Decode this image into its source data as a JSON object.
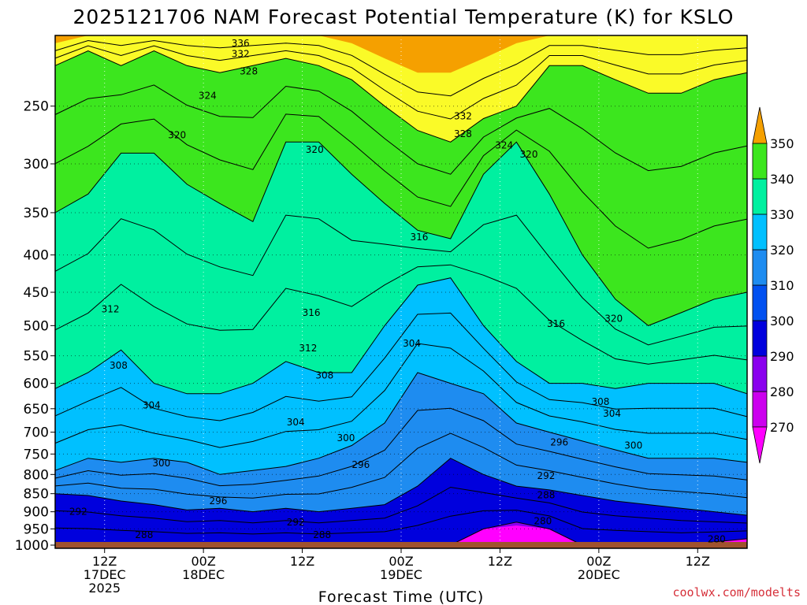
{
  "chart_data": {
    "type": "heatmap",
    "title": "2025121706 NAM Forecast Potential Temperature (K) for KSLO",
    "xlabel": "Forecast Time (UTC)",
    "ylabel": "",
    "x_ticks": [
      {
        "hours": 6,
        "lines": [
          "12Z",
          "17DEC",
          "2025"
        ]
      },
      {
        "hours": 18,
        "lines": [
          "00Z",
          "18DEC"
        ]
      },
      {
        "hours": 30,
        "lines": [
          "12Z"
        ]
      },
      {
        "hours": 42,
        "lines": [
          "00Z",
          "19DEC"
        ]
      },
      {
        "hours": 54,
        "lines": [
          "12Z"
        ]
      },
      {
        "hours": 66,
        "lines": [
          "00Z",
          "20DEC"
        ]
      },
      {
        "hours": 78,
        "lines": [
          "12Z"
        ]
      }
    ],
    "xlim_hours": [
      0,
      84
    ],
    "y_ticks": [
      250,
      300,
      350,
      400,
      450,
      500,
      550,
      600,
      650,
      700,
      750,
      800,
      850,
      900,
      950,
      1000
    ],
    "ylim_hpa": [
      1010,
      200
    ],
    "y_scale": "log",
    "grid": true,
    "surface_pressure_hpa": 990,
    "colorbar": {
      "levels": [
        270,
        280,
        290,
        300,
        310,
        320,
        330,
        340,
        350
      ],
      "colors": [
        "#ff00ff",
        "#cc00ee",
        "#8a00ee",
        "#0000dd",
        "#0050f0",
        "#1e8cf0",
        "#00c0ff",
        "#00f0a0",
        "#3ce61e",
        "#fafa28",
        "#f5a000"
      ],
      "extend": "both"
    },
    "x_hours": [
      0,
      4,
      8,
      12,
      16,
      20,
      24,
      28,
      32,
      36,
      40,
      44,
      48,
      52,
      56,
      60,
      64,
      68,
      72,
      76,
      80,
      84
    ],
    "series": [
      {
        "name": "280",
        "values": [
          1000,
          1000,
          1000,
          1000,
          1000,
          1000,
          1000,
          1000,
          1000,
          1000,
          1000,
          1000,
          1000,
          950,
          930,
          950,
          1000,
          1000,
          1000,
          1000,
          990,
          980
        ]
      },
      {
        "name": "290",
        "values": [
          850,
          855,
          870,
          880,
          895,
          890,
          900,
          890,
          900,
          890,
          880,
          830,
          760,
          800,
          830,
          840,
          855,
          870,
          880,
          890,
          900,
          910
        ]
      },
      {
        "name": "300",
        "values": [
          790,
          760,
          770,
          760,
          770,
          800,
          790,
          780,
          760,
          730,
          680,
          580,
          600,
          620,
          680,
          700,
          720,
          740,
          760,
          760,
          760,
          770
        ]
      },
      {
        "name": "310",
        "values": [
          610,
          580,
          540,
          600,
          620,
          620,
          600,
          560,
          580,
          580,
          500,
          440,
          430,
          500,
          560,
          600,
          600,
          610,
          600,
          600,
          600,
          620
        ]
      },
      {
        "name": "320",
        "values": [
          350,
          330,
          290,
          290,
          320,
          340,
          360,
          280,
          280,
          310,
          340,
          370,
          380,
          310,
          280,
          330,
          400,
          460,
          500,
          480,
          460,
          450
        ]
      },
      {
        "name": "330",
        "values": [
          220,
          210,
          220,
          210,
          220,
          225,
          220,
          215,
          220,
          230,
          250,
          270,
          280,
          260,
          250,
          220,
          220,
          230,
          240,
          240,
          230,
          225
        ]
      },
      {
        "name": "340",
        "values": [
          205,
          200,
          200,
          200,
          200,
          200,
          200,
          200,
          200,
          205,
          215,
          225,
          225,
          215,
          205,
          200,
          200,
          200,
          200,
          200,
          200,
          200
        ]
      }
    ],
    "contour_labels": [
      {
        "text": "336",
        "hours": 22.5,
        "hpa": 205
      },
      {
        "text": "332",
        "hours": 22.5,
        "hpa": 212
      },
      {
        "text": "328",
        "hours": 23.5,
        "hpa": 224
      },
      {
        "text": "324",
        "hours": 18.5,
        "hpa": 242
      },
      {
        "text": "332",
        "hours": 49.5,
        "hpa": 258
      },
      {
        "text": "328",
        "hours": 49.5,
        "hpa": 273
      },
      {
        "text": "324",
        "hours": 54.5,
        "hpa": 283
      },
      {
        "text": "320",
        "hours": 57.5,
        "hpa": 291
      },
      {
        "text": "320",
        "hours": 14.8,
        "hpa": 274
      },
      {
        "text": "320",
        "hours": 31.5,
        "hpa": 287
      },
      {
        "text": "316",
        "hours": 44.2,
        "hpa": 378
      },
      {
        "text": "316",
        "hours": 31.1,
        "hpa": 480
      },
      {
        "text": "316",
        "hours": 60.8,
        "hpa": 497
      },
      {
        "text": "320",
        "hours": 67.8,
        "hpa": 489
      },
      {
        "text": "312",
        "hours": 6.7,
        "hpa": 475
      },
      {
        "text": "312",
        "hours": 30.7,
        "hpa": 537
      },
      {
        "text": "304",
        "hours": 43.3,
        "hpa": 529
      },
      {
        "text": "308",
        "hours": 7.7,
        "hpa": 567
      },
      {
        "text": "308",
        "hours": 32.7,
        "hpa": 585
      },
      {
        "text": "304",
        "hours": 11.7,
        "hpa": 643
      },
      {
        "text": "304",
        "hours": 29.2,
        "hpa": 678
      },
      {
        "text": "308",
        "hours": 66.2,
        "hpa": 636
      },
      {
        "text": "304",
        "hours": 67.6,
        "hpa": 660
      },
      {
        "text": "300",
        "hours": 35.3,
        "hpa": 713
      },
      {
        "text": "296",
        "hours": 37.1,
        "hpa": 776
      },
      {
        "text": "296",
        "hours": 61.2,
        "hpa": 723
      },
      {
        "text": "300",
        "hours": 70.2,
        "hpa": 730
      },
      {
        "text": "300",
        "hours": 12.9,
        "hpa": 772
      },
      {
        "text": "292",
        "hours": 59.6,
        "hpa": 803
      },
      {
        "text": "288",
        "hours": 59.6,
        "hpa": 854
      },
      {
        "text": "296",
        "hours": 19.8,
        "hpa": 870
      },
      {
        "text": "292",
        "hours": 2.8,
        "hpa": 900
      },
      {
        "text": "292",
        "hours": 29.2,
        "hpa": 930
      },
      {
        "text": "288",
        "hours": 10.8,
        "hpa": 968
      },
      {
        "text": "288",
        "hours": 32.4,
        "hpa": 968
      },
      {
        "text": "280",
        "hours": 59.2,
        "hpa": 927
      },
      {
        "text": "280",
        "hours": 80.3,
        "hpa": 982
      }
    ],
    "credit": "coolwx.com/modelts"
  }
}
